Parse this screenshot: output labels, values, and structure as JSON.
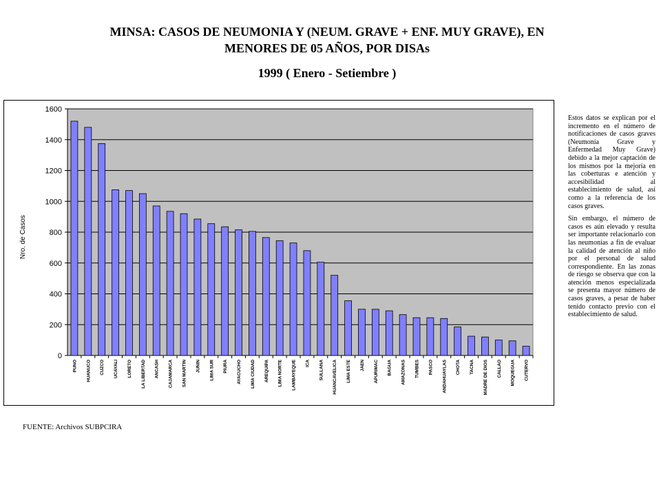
{
  "title_line1": "MINSA: CASOS DE NEUMONIA Y  (NEUM. GRAVE  + ENF. MUY GRAVE), EN",
  "title_line2": "MENORES DE 05 AÑOS, POR DISAs",
  "subtitle": "1999 ( Enero  -  Setiembre   )",
  "source": "FUENTE: Archivos SUBPCIRA",
  "note": {
    "paragraph1": "Estos datos se explican por el incremento en el número de notificaciones de casos graves (Neumonía Grave y Enfermedad Muy Grave) debido a la mejor captación de los mismos por la mejoría en las coberturas e atención y accesibilidad al establecimiento de salud, así como a la referencia de los casos graves.",
    "paragraph2": "Sin embargo, el número de casos es aún elevado y resulta ser importante relacionarlo con las neumonías a fin de evaluar la calidad de atención al niño por el personal de salud correspondiente. En las zonas de riesgo se observa que con la atención menos especializada se presenta mayor número de casos graves, a pesar de haber tenido contacto previo con el establecimiento de salud."
  },
  "chart_data": {
    "type": "bar",
    "ylabel": "Nro. de Casos",
    "xlabel": "",
    "ylim": [
      0,
      1600
    ],
    "yticks": [
      0,
      200,
      400,
      600,
      800,
      1000,
      1200,
      1400,
      1600
    ],
    "grid": true,
    "colors": {
      "bar": "#8080ff",
      "plot_bg": "#c0c0c0",
      "grid": "#000000"
    },
    "categories": [
      "PUNO",
      "HUANUCO",
      "CUZCO",
      "UCAYALI",
      "LORETO",
      "LA LIBERTAD",
      "ANCASH",
      "CAJAMARCA",
      "SAN MARTIN",
      "JUNIN",
      "LIMA SUR",
      "PIURA",
      "AYACUCHO",
      "LIMA CIUDAD",
      "AREQUIPA",
      "LIMA NORTE",
      "LAMBAYEQUE",
      "ICA",
      "SULLANA",
      "HUANCAVELICA",
      "LIMA ESTE",
      "JAEN",
      "APURIMAC",
      "BAGUA",
      "AMAZONAS",
      "TUMBES",
      "PASCO",
      "ANDAHUAYLAS",
      "CHOTA",
      "TACNA",
      "MADRE DE DIOS",
      "CALLAO",
      "MOQUEGUA",
      "CUTERVO"
    ],
    "values": [
      1520,
      1480,
      1375,
      1075,
      1070,
      1050,
      970,
      935,
      920,
      885,
      855,
      835,
      815,
      805,
      765,
      745,
      730,
      680,
      605,
      520,
      355,
      300,
      300,
      290,
      265,
      245,
      245,
      240,
      185,
      125,
      120,
      100,
      95,
      60
    ]
  }
}
